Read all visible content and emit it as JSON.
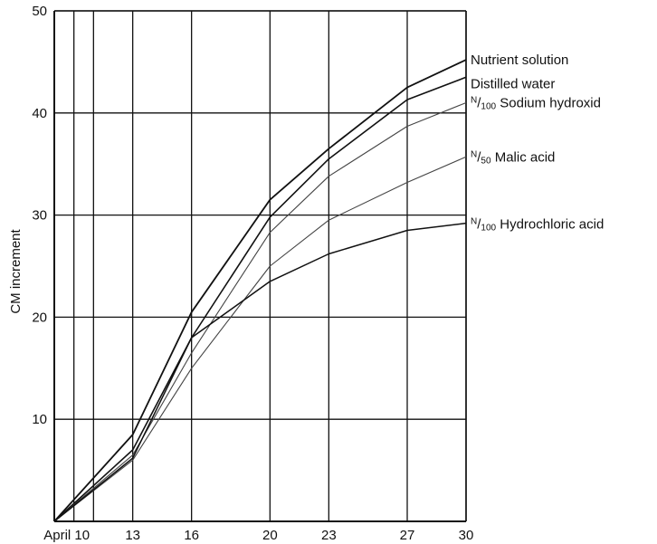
{
  "chart_data": {
    "type": "line",
    "title": "",
    "xlabel": "",
    "ylabel": "CM increment",
    "x_ticks": [
      "April 10",
      "13",
      "16",
      "20",
      "23",
      "27",
      "30"
    ],
    "x_tick_values": [
      10,
      13,
      16,
      20,
      23,
      27,
      30
    ],
    "x_gridlines": [
      10,
      11,
      13,
      16,
      20,
      23,
      27,
      30
    ],
    "xlim": [
      9,
      30
    ],
    "y_ticks": [
      10,
      20,
      30,
      40,
      50
    ],
    "ylim": [
      0,
      50
    ],
    "grid": true,
    "legend": "labels at right end of each line",
    "x": [
      9,
      13,
      16,
      20,
      23,
      27,
      30
    ],
    "series": [
      {
        "name": "Nutrient solution",
        "values": [
          0,
          8.5,
          20.5,
          31.5,
          36.5,
          42.5,
          45.2
        ],
        "stroke": "#111111",
        "width": 1.8
      },
      {
        "name": "Distilled water",
        "values": [
          0,
          7.0,
          18.0,
          29.8,
          35.5,
          41.3,
          43.5
        ],
        "stroke": "#111111",
        "width": 1.6
      },
      {
        "name": "N/100 Sodium hydroxid",
        "values": [
          0,
          6.5,
          16.5,
          28.3,
          33.8,
          38.7,
          41.0
        ],
        "stroke": "#444444",
        "width": 1.1
      },
      {
        "name": "N/50 Malic acid",
        "values": [
          0,
          6.0,
          15.0,
          25.0,
          29.5,
          33.2,
          35.7
        ],
        "stroke": "#444444",
        "width": 1.1
      },
      {
        "name": "N/100 Hydrochloric acid",
        "values": [
          0,
          6.2,
          18.0,
          23.5,
          26.2,
          28.5,
          29.2
        ],
        "stroke": "#111111",
        "width": 1.5
      }
    ],
    "series_label_parts": [
      {
        "pre": "",
        "num": "",
        "den": "",
        "rest": "Nutrient solution"
      },
      {
        "pre": "",
        "num": "",
        "den": "",
        "rest": "Distilled water"
      },
      {
        "pre": "",
        "num": "N",
        "den": "100",
        "rest": " Sodium hydroxid"
      },
      {
        "pre": "",
        "num": "N",
        "den": "50",
        "rest": " Malic acid"
      },
      {
        "pre": "",
        "num": "N",
        "den": "100",
        "rest": " Hydrochloric acid"
      }
    ]
  }
}
